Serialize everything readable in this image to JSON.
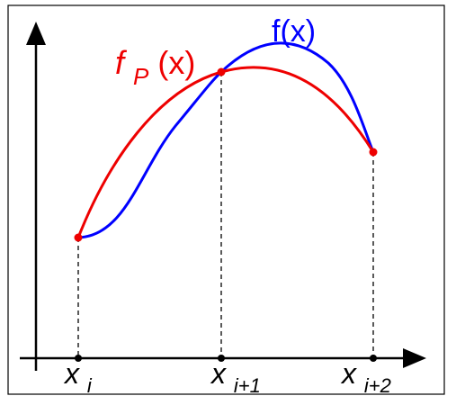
{
  "colors": {
    "frame": "#000000",
    "axes": "#000000",
    "f_curve": "#0000ff",
    "fp_curve": "#ee0000",
    "points": "#ee0000",
    "guides": "#000000"
  },
  "labels": {
    "f_curve": {
      "main": "f(x)"
    },
    "fp_curve": {
      "main": "f",
      "sub": "P",
      "tail": "(x)"
    },
    "ticks": [
      {
        "base": "x",
        "sub": "i"
      },
      {
        "base": "x",
        "sub": "i+1"
      },
      {
        "base": "x",
        "sub": "i+2"
      }
    ]
  }
}
